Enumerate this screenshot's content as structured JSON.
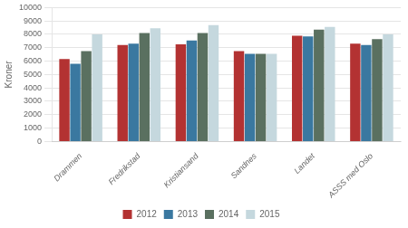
{
  "chart_data": {
    "type": "bar",
    "categories": [
      "Drammen",
      "Fredrikstad",
      "Kristiansand",
      "Sandnes",
      "Landet",
      "ASSS med Oslo"
    ],
    "series": [
      {
        "name": "2012",
        "color": "#b33232",
        "values": [
          6150,
          7200,
          7250,
          6750,
          7900,
          7300
        ]
      },
      {
        "name": "2013",
        "color": "#3a78a0",
        "values": [
          5800,
          7300,
          7550,
          6550,
          7850,
          7200
        ]
      },
      {
        "name": "2014",
        "color": "#5a7060",
        "values": [
          6750,
          8100,
          8100,
          6550,
          8350,
          7650
        ]
      },
      {
        "name": "2015",
        "color": "#c5d8de",
        "values": [
          8000,
          8450,
          8700,
          6550,
          8550,
          8000
        ]
      }
    ],
    "ylabel": "Kroner",
    "ylim": [
      0,
      10000
    ],
    "yticks": [
      0,
      1000,
      2000,
      3000,
      4000,
      5000,
      6000,
      7000,
      8000,
      9000,
      10000
    ],
    "grid": true,
    "legend": "bottom"
  }
}
